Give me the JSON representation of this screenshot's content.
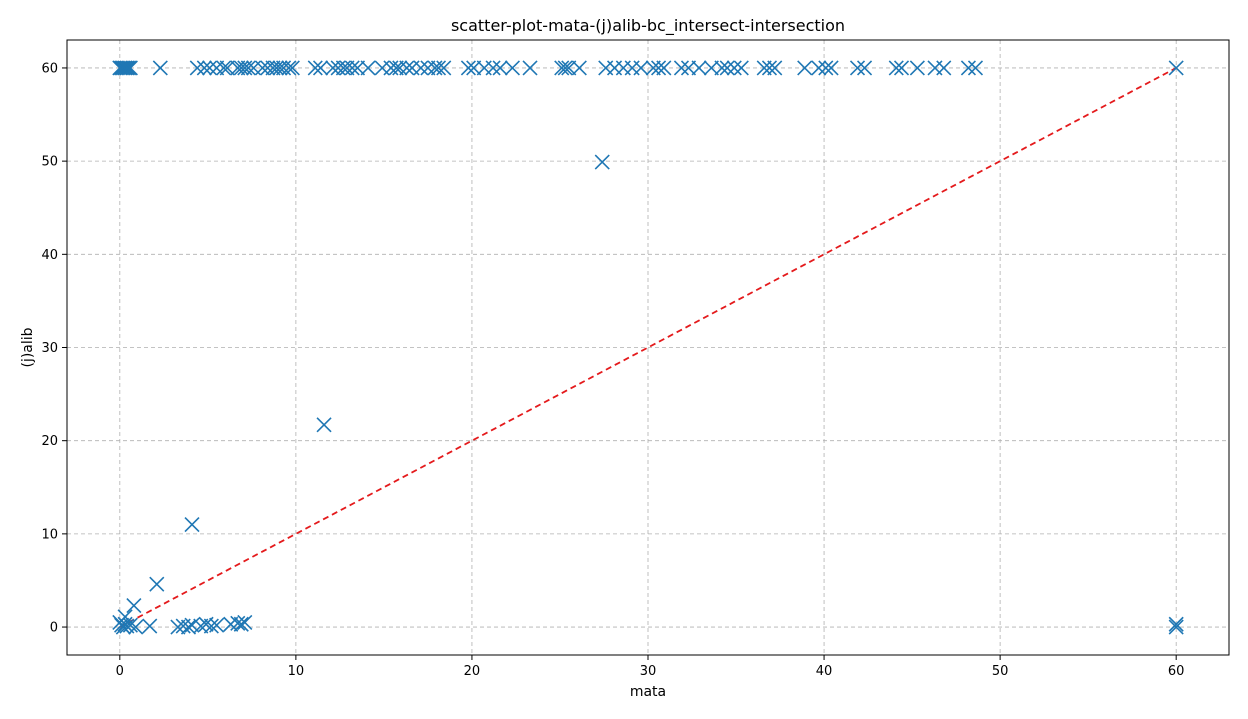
{
  "chart_data": {
    "type": "scatter",
    "title": "scatter-plot-mata-(j)alib-bc_intersect-intersection",
    "xlabel": "mata",
    "ylabel": "(j)alib",
    "xlim": [
      -3,
      63
    ],
    "ylim": [
      -3,
      63
    ],
    "xticks": [
      0,
      10,
      20,
      30,
      40,
      50,
      60
    ],
    "yticks": [
      0,
      10,
      20,
      30,
      40,
      50,
      60
    ],
    "grid": true,
    "marker": "x",
    "marker_color": "#1f77b4",
    "reference_line": {
      "from": [
        0,
        0
      ],
      "to": [
        60,
        60
      ],
      "color": "#e41a1c",
      "style": "dashed"
    },
    "series": [
      {
        "points": [
          [
            0.0,
            60
          ],
          [
            0.1,
            60
          ],
          [
            0.2,
            60
          ],
          [
            0.3,
            60
          ],
          [
            0.4,
            60
          ],
          [
            0.5,
            60
          ],
          [
            0.6,
            60
          ],
          [
            2.3,
            60
          ],
          [
            4.4,
            60
          ],
          [
            4.8,
            60
          ],
          [
            5.1,
            60
          ],
          [
            5.5,
            60
          ],
          [
            5.9,
            60
          ],
          [
            6.1,
            60
          ],
          [
            6.7,
            60
          ],
          [
            6.9,
            60
          ],
          [
            7.1,
            60
          ],
          [
            7.3,
            60
          ],
          [
            7.6,
            60
          ],
          [
            8.1,
            60
          ],
          [
            8.4,
            60
          ],
          [
            8.7,
            60
          ],
          [
            8.9,
            60
          ],
          [
            9.1,
            60
          ],
          [
            9.3,
            60
          ],
          [
            9.6,
            60
          ],
          [
            9.8,
            60
          ],
          [
            11.1,
            60
          ],
          [
            11.4,
            60
          ],
          [
            12.1,
            60
          ],
          [
            12.4,
            60
          ],
          [
            12.7,
            60
          ],
          [
            12.9,
            60
          ],
          [
            13.2,
            60
          ],
          [
            13.5,
            60
          ],
          [
            14.1,
            60
          ],
          [
            14.9,
            60
          ],
          [
            15.4,
            60
          ],
          [
            15.7,
            60
          ],
          [
            15.9,
            60
          ],
          [
            16.3,
            60
          ],
          [
            16.6,
            60
          ],
          [
            17.1,
            60
          ],
          [
            17.5,
            60
          ],
          [
            17.9,
            60
          ],
          [
            18.1,
            60
          ],
          [
            18.4,
            60
          ],
          [
            19.8,
            60
          ],
          [
            20.1,
            60
          ],
          [
            20.7,
            60
          ],
          [
            21.2,
            60
          ],
          [
            21.6,
            60
          ],
          [
            22.3,
            60
          ],
          [
            23.3,
            60
          ],
          [
            25.1,
            60
          ],
          [
            25.3,
            60
          ],
          [
            25.5,
            60
          ],
          [
            26.1,
            60
          ],
          [
            27.6,
            60
          ],
          [
            28.1,
            60
          ],
          [
            28.6,
            60
          ],
          [
            29.1,
            60
          ],
          [
            29.6,
            60
          ],
          [
            30.3,
            60
          ],
          [
            30.6,
            60
          ],
          [
            30.9,
            60
          ],
          [
            31.9,
            60
          ],
          [
            32.3,
            60
          ],
          [
            32.9,
            60
          ],
          [
            33.6,
            60
          ],
          [
            34.2,
            60
          ],
          [
            34.5,
            60
          ],
          [
            34.9,
            60
          ],
          [
            35.3,
            60
          ],
          [
            36.6,
            60
          ],
          [
            36.9,
            60
          ],
          [
            37.2,
            60
          ],
          [
            38.9,
            60
          ],
          [
            39.7,
            60
          ],
          [
            40.1,
            60
          ],
          [
            40.4,
            60
          ],
          [
            41.9,
            60
          ],
          [
            42.3,
            60
          ],
          [
            44.1,
            60
          ],
          [
            44.4,
            60
          ],
          [
            45.3,
            60
          ],
          [
            46.3,
            60
          ],
          [
            46.8,
            60
          ],
          [
            48.2,
            60
          ],
          [
            48.6,
            60
          ],
          [
            60.0,
            60
          ],
          [
            27.4,
            49.9
          ],
          [
            11.6,
            21.7
          ],
          [
            4.1,
            11.0
          ],
          [
            2.1,
            4.6
          ],
          [
            0.8,
            2.3
          ],
          [
            0.3,
            1.1
          ],
          [
            0.0,
            0.5
          ],
          [
            0.1,
            0.2
          ],
          [
            0.2,
            0.0
          ],
          [
            0.3,
            0.3
          ],
          [
            0.4,
            0.1
          ],
          [
            0.6,
            0.2
          ],
          [
            0.9,
            0.0
          ],
          [
            1.7,
            0.1
          ],
          [
            3.3,
            0.0
          ],
          [
            3.6,
            0.1
          ],
          [
            3.9,
            0.0
          ],
          [
            4.1,
            0.2
          ],
          [
            4.6,
            0.1
          ],
          [
            4.9,
            0.3
          ],
          [
            5.2,
            0.1
          ],
          [
            5.5,
            0.2
          ],
          [
            6.3,
            0.3
          ],
          [
            6.7,
            0.4
          ],
          [
            6.9,
            0.3
          ],
          [
            7.1,
            0.5
          ],
          [
            60.0,
            0.0
          ],
          [
            60.0,
            0.3
          ]
        ]
      }
    ]
  }
}
